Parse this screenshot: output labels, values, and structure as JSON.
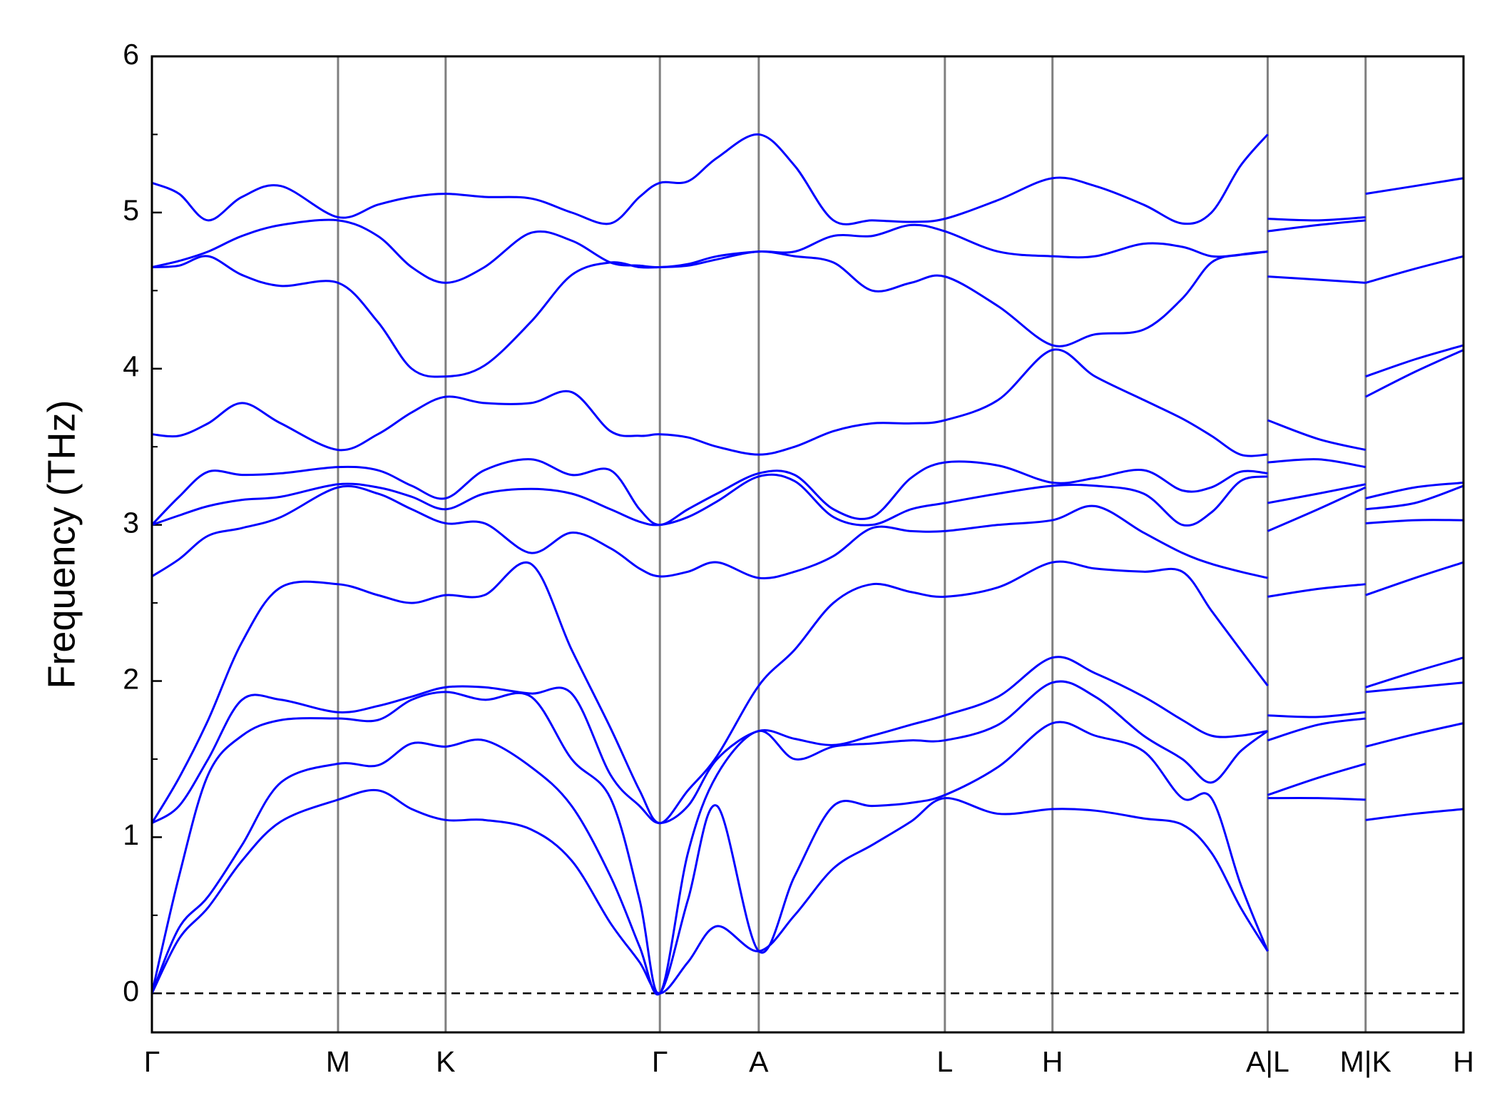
{
  "chart_data": {
    "type": "line",
    "ylabel": "Frequency (THz)",
    "xlim": [
      0,
      1353
    ],
    "ylim": [
      -0.25,
      6
    ],
    "yticks": [
      0,
      1,
      2,
      3,
      4,
      5,
      6
    ],
    "yticks_minor": [
      0.5,
      1.5,
      2.5,
      3.5,
      4.5,
      5.5
    ],
    "xticks": [
      {
        "value": 0,
        "label": "Γ"
      },
      {
        "value": 192,
        "label": "M"
      },
      {
        "value": 303,
        "label": "K"
      },
      {
        "value": 524,
        "label": "Γ"
      },
      {
        "value": 626,
        "label": "A"
      },
      {
        "value": 818,
        "label": "L"
      },
      {
        "value": 929,
        "label": "H"
      },
      {
        "value": 1151,
        "label": "A|L"
      },
      {
        "value": 1252,
        "label": "M|K"
      },
      {
        "value": 1353,
        "label": "H"
      }
    ],
    "vlines": true,
    "zero_line": true,
    "x": [
      0,
      28,
      58,
      93,
      133,
      192,
      233,
      268,
      303,
      343,
      391,
      433,
      473,
      503,
      524,
      553,
      583,
      626,
      663,
      703,
      743,
      783,
      818,
      873,
      929,
      973,
      1023,
      1063,
      1093,
      1123,
      1151,
      1151,
      1151,
      1203,
      1252,
      1252,
      1252,
      1303,
      1353
    ],
    "series": [
      {
        "color": "#0000ff",
        "values": [
          0,
          0.35,
          0.55,
          0.85,
          1.1,
          1.24,
          1.3,
          1.18,
          1.11,
          1.11,
          1.05,
          0.85,
          0.45,
          0.2,
          0,
          0.2,
          0.43,
          0.27,
          0.5,
          0.8,
          0.95,
          1.1,
          1.25,
          1.15,
          1.18,
          1.17,
          1.12,
          1.08,
          0.9,
          0.55,
          0.27,
          null,
          1.25,
          1.25,
          1.24,
          null,
          1.11,
          1.15,
          1.18
        ]
      },
      {
        "color": "#0000ff",
        "values": [
          0,
          0.42,
          0.62,
          0.95,
          1.35,
          1.47,
          1.46,
          1.6,
          1.58,
          1.62,
          1.45,
          1.2,
          0.75,
          0.3,
          0,
          0.6,
          1.2,
          0.27,
          0.75,
          1.2,
          1.2,
          1.22,
          1.27,
          1.45,
          1.73,
          1.65,
          1.55,
          1.25,
          1.25,
          0.7,
          0.27,
          null,
          1.27,
          1.38,
          1.47,
          null,
          1.58,
          1.66,
          1.73
        ]
      },
      {
        "color": "#0000ff",
        "values": [
          0,
          0.75,
          1.4,
          1.65,
          1.75,
          1.76,
          1.75,
          1.88,
          1.93,
          1.88,
          1.9,
          1.5,
          1.25,
          0.6,
          0,
          0.9,
          1.4,
          1.68,
          1.5,
          1.58,
          1.6,
          1.62,
          1.62,
          1.72,
          1.99,
          1.9,
          1.65,
          1.5,
          1.35,
          1.55,
          1.68,
          null,
          1.62,
          1.72,
          1.76,
          null,
          1.93,
          1.96,
          1.99
        ]
      },
      {
        "color": "#0000ff",
        "values": [
          1.09,
          1.2,
          1.5,
          1.88,
          1.88,
          1.8,
          1.84,
          1.9,
          1.96,
          1.96,
          1.92,
          1.92,
          1.4,
          1.2,
          1.09,
          1.2,
          1.5,
          1.68,
          1.63,
          1.59,
          1.65,
          1.72,
          1.78,
          1.9,
          2.15,
          2.05,
          1.9,
          1.75,
          1.65,
          1.65,
          1.68,
          null,
          1.78,
          1.77,
          1.8,
          null,
          1.96,
          2.06,
          2.15
        ]
      },
      {
        "color": "#0000ff",
        "values": [
          1.09,
          1.38,
          1.75,
          2.25,
          2.6,
          2.62,
          2.55,
          2.5,
          2.55,
          2.55,
          2.75,
          2.2,
          1.7,
          1.3,
          1.09,
          1.3,
          1.52,
          1.97,
          2.2,
          2.5,
          2.62,
          2.57,
          2.54,
          2.6,
          2.76,
          2.72,
          2.7,
          2.7,
          2.45,
          2.2,
          1.97,
          null,
          2.54,
          2.59,
          2.62,
          null,
          2.55,
          2.66,
          2.76
        ]
      },
      {
        "color": "#0000ff",
        "values": [
          2.67,
          2.78,
          2.93,
          2.98,
          3.05,
          3.24,
          3.2,
          3.1,
          3.01,
          3.01,
          2.82,
          2.95,
          2.85,
          2.72,
          2.67,
          2.7,
          2.76,
          2.66,
          2.7,
          2.8,
          2.98,
          2.96,
          2.96,
          3.0,
          3.03,
          3.12,
          2.95,
          2.82,
          2.75,
          2.7,
          2.66,
          null,
          2.96,
          3.1,
          3.24,
          null,
          3.01,
          3.03,
          3.03
        ]
      },
      {
        "color": "#0000ff",
        "values": [
          3.0,
          3.06,
          3.12,
          3.16,
          3.18,
          3.26,
          3.24,
          3.18,
          3.1,
          3.2,
          3.23,
          3.2,
          3.1,
          3.02,
          3.0,
          3.05,
          3.15,
          3.31,
          3.28,
          3.05,
          3.0,
          3.1,
          3.14,
          3.2,
          3.25,
          3.25,
          3.2,
          3.0,
          3.08,
          3.28,
          3.31,
          null,
          3.14,
          3.2,
          3.26,
          null,
          3.1,
          3.14,
          3.25
        ]
      },
      {
        "color": "#0000ff",
        "values": [
          3.0,
          3.18,
          3.34,
          3.32,
          3.33,
          3.37,
          3.35,
          3.25,
          3.17,
          3.35,
          3.42,
          3.32,
          3.35,
          3.1,
          3.0,
          3.1,
          3.2,
          3.33,
          3.32,
          3.1,
          3.05,
          3.3,
          3.4,
          3.38,
          3.27,
          3.3,
          3.35,
          3.22,
          3.24,
          3.34,
          3.33,
          null,
          3.4,
          3.42,
          3.37,
          null,
          3.17,
          3.24,
          3.27
        ]
      },
      {
        "color": "#0000ff",
        "values": [
          3.58,
          3.57,
          3.65,
          3.78,
          3.65,
          3.48,
          3.58,
          3.72,
          3.82,
          3.78,
          3.78,
          3.85,
          3.6,
          3.57,
          3.58,
          3.56,
          3.5,
          3.45,
          3.5,
          3.6,
          3.65,
          3.65,
          3.67,
          3.8,
          4.12,
          3.95,
          3.8,
          3.68,
          3.57,
          3.45,
          3.45,
          null,
          3.67,
          3.55,
          3.48,
          null,
          3.82,
          3.98,
          4.12
        ]
      },
      {
        "color": "#0000ff",
        "values": [
          4.65,
          4.66,
          4.72,
          4.6,
          4.53,
          4.55,
          4.3,
          4.0,
          3.95,
          4.02,
          4.3,
          4.6,
          4.68,
          4.65,
          4.65,
          4.66,
          4.7,
          4.75,
          4.72,
          4.68,
          4.5,
          4.55,
          4.59,
          4.4,
          4.15,
          4.22,
          4.25,
          4.45,
          4.68,
          4.73,
          4.75,
          null,
          4.59,
          4.57,
          4.55,
          null,
          3.95,
          4.06,
          4.15
        ]
      },
      {
        "color": "#0000ff",
        "values": [
          4.65,
          4.69,
          4.75,
          4.85,
          4.92,
          4.95,
          4.85,
          4.65,
          4.55,
          4.65,
          4.87,
          4.82,
          4.68,
          4.66,
          4.65,
          4.67,
          4.72,
          4.75,
          4.75,
          4.85,
          4.85,
          4.92,
          4.88,
          4.75,
          4.72,
          4.72,
          4.8,
          4.78,
          4.72,
          4.73,
          4.75,
          null,
          4.88,
          4.92,
          4.95,
          null,
          4.55,
          4.64,
          4.72
        ]
      },
      {
        "color": "#0000ff",
        "values": [
          5.19,
          5.12,
          4.95,
          5.1,
          5.17,
          4.97,
          5.05,
          5.1,
          5.12,
          5.1,
          5.09,
          5.0,
          4.93,
          5.1,
          5.19,
          5.2,
          5.35,
          5.5,
          5.3,
          4.95,
          4.95,
          4.94,
          4.96,
          5.08,
          5.22,
          5.17,
          5.05,
          4.93,
          5.0,
          5.3,
          5.5,
          null,
          4.96,
          4.95,
          4.97,
          null,
          5.12,
          5.17,
          5.22
        ]
      }
    ]
  }
}
